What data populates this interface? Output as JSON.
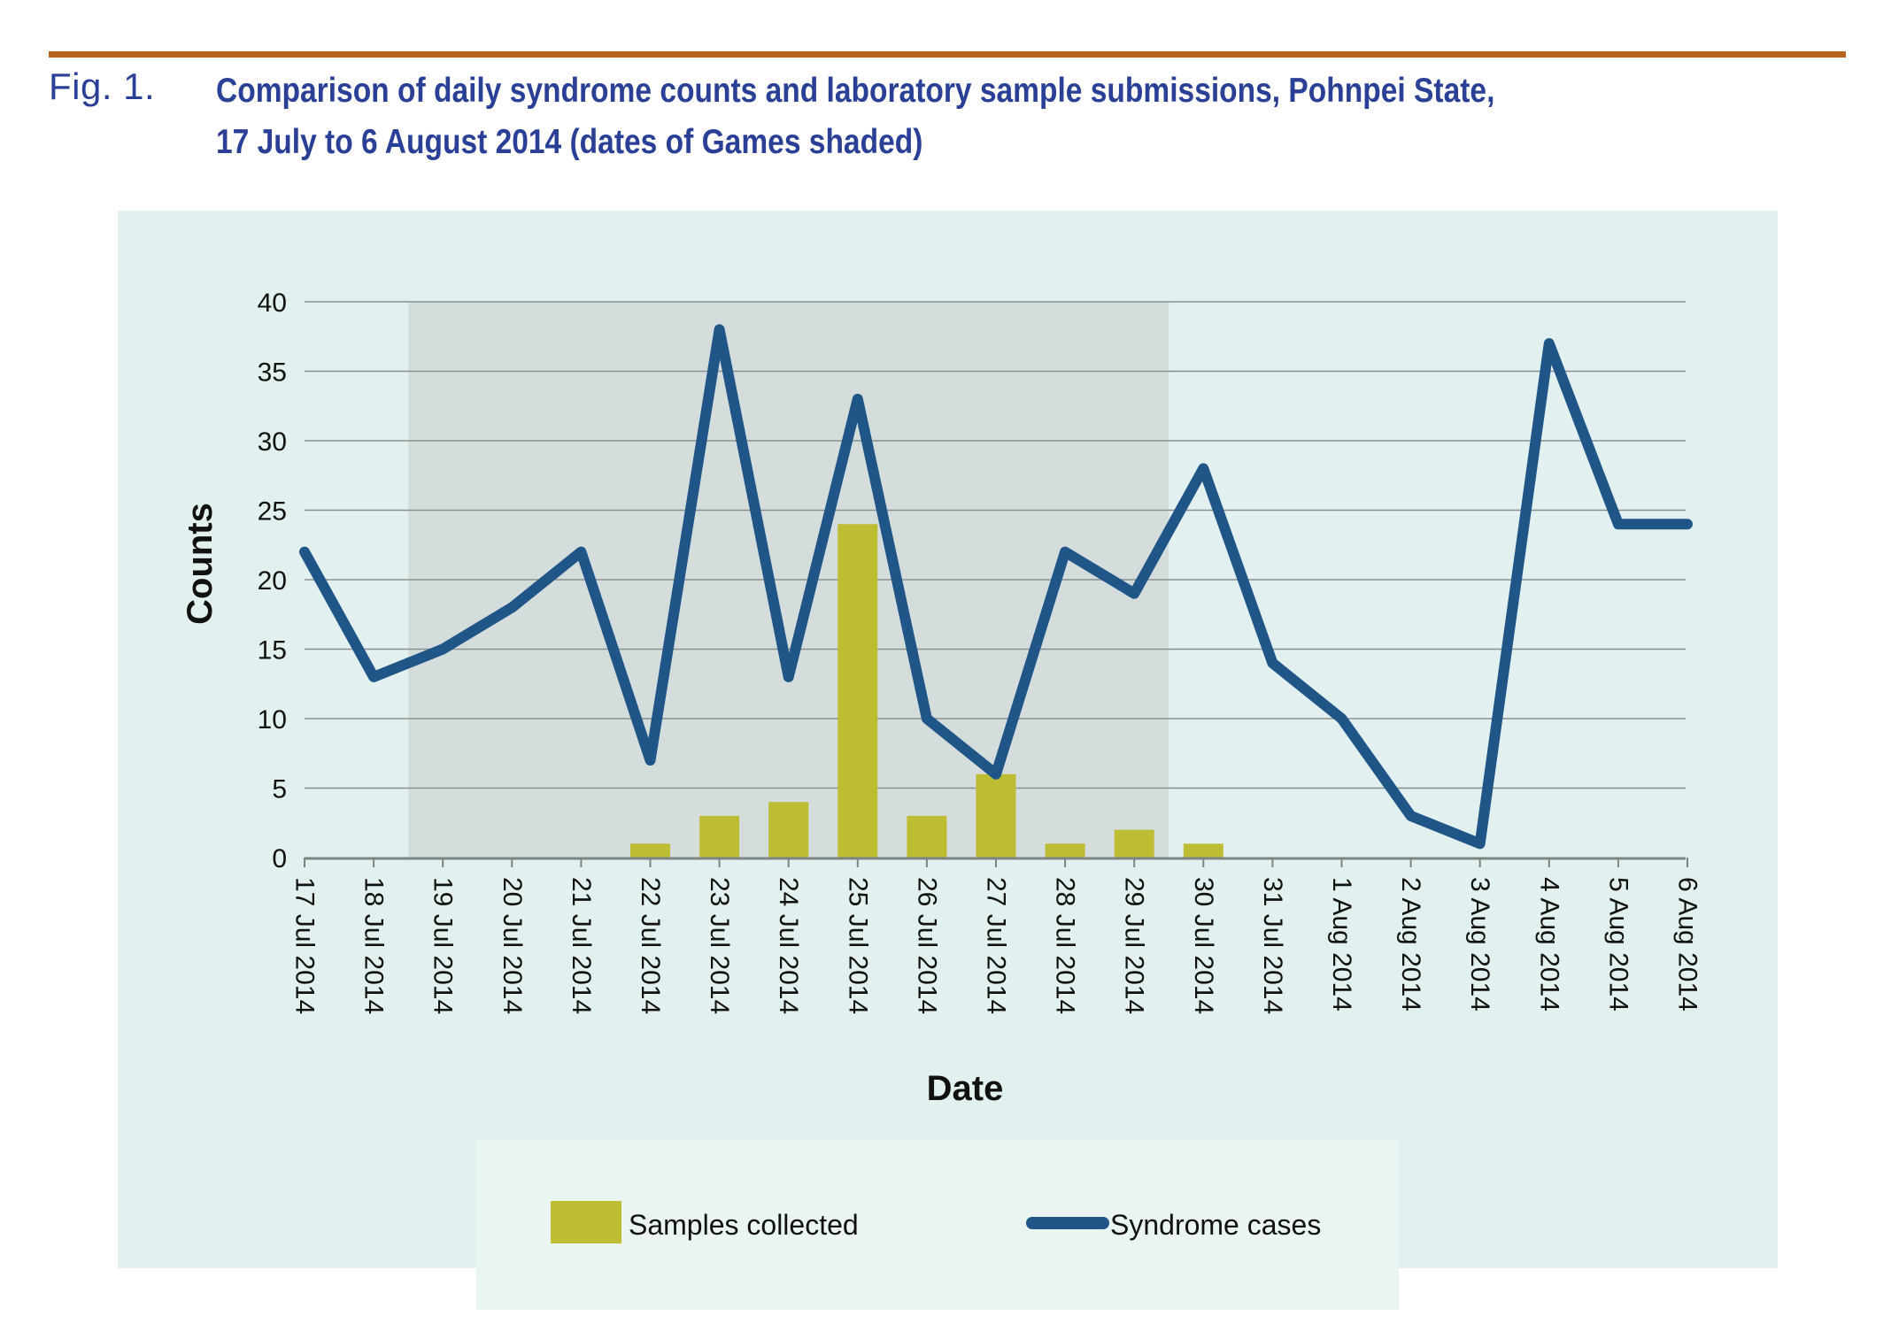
{
  "figure": {
    "label": "Fig. 1.",
    "title_line1": "Comparison of daily syndrome counts and laboratory sample submissions, Pohnpei State,",
    "title_line2": "17 July to 6 August 2014 (dates of Games shaded)"
  },
  "colors": {
    "rule": "#b8621b",
    "title": "#2a3f96",
    "panel_background": "#e2f1ef",
    "shaded_region": "#d5dcdc",
    "gridline": "#8a9090",
    "bar": "#bdbd34",
    "line": "#1f5587",
    "legend_background": "#e9f4f3"
  },
  "chart_data": {
    "type": "bar+line",
    "title": "",
    "xlabel": "Date",
    "ylabel": "Counts",
    "ylim": [
      0,
      40
    ],
    "yticks": [
      0,
      5,
      10,
      15,
      20,
      25,
      30,
      35,
      40
    ],
    "grid": true,
    "legend_placement": "bottom-center",
    "categories": [
      "17 Jul 2014",
      "18 Jul 2014",
      "19 Jul 2014",
      "20 Jul 2014",
      "21 Jul 2014",
      "22 Jul 2014",
      "23 Jul 2014",
      "24 Jul 2014",
      "25 Jul 2014",
      "26 Jul 2014",
      "27 Jul 2014",
      "28 Jul 2014",
      "29 Jul 2014",
      "30 Jul 2014",
      "31 Jul 2014",
      "1 Aug 2014",
      "2 Aug 2014",
      "3 Aug 2014",
      "4 Aug 2014",
      "5 Aug 2014",
      "6 Aug 2014"
    ],
    "series": [
      {
        "name": "Samples collected",
        "type": "bar",
        "values": [
          0,
          0,
          0,
          0,
          0,
          1,
          3,
          4,
          24,
          3,
          6,
          1,
          2,
          1,
          0,
          0,
          0,
          0,
          0,
          0,
          0
        ]
      },
      {
        "name": "Syndrome cases",
        "type": "line",
        "values": [
          22,
          13,
          15,
          18,
          22,
          7,
          38,
          13,
          33,
          10,
          6,
          22,
          19,
          28,
          14,
          10,
          3,
          1,
          37,
          24,
          24
        ]
      }
    ],
    "shaded_range": {
      "label": "dates of Games",
      "from_category": "19 Jul 2014",
      "to_category": "29 Jul 2014"
    }
  }
}
